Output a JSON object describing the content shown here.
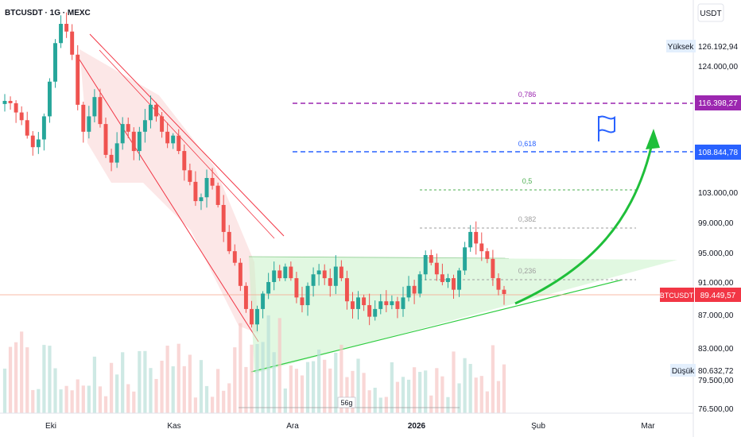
{
  "header": {
    "symbol_label": "BTCUSDT · 1G · MEXC"
  },
  "price_axis": {
    "currency": "USDT",
    "ticks": [
      "124.000,00",
      "103.000,00",
      "99.000,00",
      "95.000,00",
      "91.000,00",
      "87.000,00",
      "83.000,00",
      "79.500,00",
      "76.500,00"
    ],
    "high_label": "Yüksek",
    "high_value": "126.192,94",
    "low_label": "Düşük",
    "low_value": "80.632,72",
    "tag_786": "116.398,27",
    "tag_618": "108.844,78",
    "current_symbol": "BTCUSDT",
    "current_value": "89.449,57"
  },
  "time_axis": {
    "labels": [
      "Eki",
      "Kas",
      "Ara",
      "2026",
      "Şub",
      "Mar"
    ]
  },
  "fib": {
    "l786": "0,786",
    "l618": "0,618",
    "l5": "0,5",
    "l382": "0,382",
    "l236": "0,236"
  },
  "measure_label": "56g",
  "colors": {
    "up": "#26a69a",
    "down": "#ef5350",
    "fib786": "#9c27b0",
    "fib618": "#2962ff",
    "arrow": "#1fbf3a"
  },
  "icons": [
    "flag-icon"
  ],
  "chart_data": {
    "type": "candlestick",
    "title": "BTCUSDT · 1G · MEXC",
    "x_labels": [
      "Eki",
      "Kas",
      "Ara",
      "2026",
      "Şub",
      "Mar"
    ],
    "y_ticks": [
      124000,
      103000,
      99000,
      95000,
      91000,
      87000,
      83000,
      79500,
      76500
    ],
    "high": 126192.94,
    "low": 80632.72,
    "current": 89449.57,
    "fib_levels": [
      {
        "ratio": "0,786",
        "price": 116398.27
      },
      {
        "ratio": "0,618",
        "price": 108844.78
      },
      {
        "ratio": "0,5",
        "price": 103500
      },
      {
        "ratio": "0,382",
        "price": 98200
      },
      {
        "ratio": "0,236",
        "price": 91600
      }
    ],
    "close_path": [
      114500,
      114200,
      113000,
      112000,
      110000,
      108500,
      109500,
      112500,
      117000,
      122000,
      124500,
      123500,
      120500,
      114000,
      110500,
      112500,
      115000,
      111500,
      107500,
      106500,
      109000,
      111500,
      110500,
      108000,
      110500,
      112000,
      114000,
      112500,
      110500,
      109000,
      110000,
      108000,
      105500,
      104000,
      101500,
      102000,
      104500,
      103500,
      101000,
      97500,
      95000,
      93500,
      90500,
      87500,
      85500,
      87500,
      89500,
      91000,
      92500,
      91500,
      93000,
      91500,
      89000,
      88000,
      90500,
      92000,
      92500,
      91500,
      90500,
      93000,
      91500,
      88500,
      87500,
      89000,
      88000,
      86500,
      87500,
      88500,
      88000,
      88500,
      87500,
      89000,
      90500,
      89500,
      92000,
      94500,
      93500,
      92000,
      91000,
      91500,
      90000,
      92500,
      95500,
      97500,
      96000,
      95000,
      94000,
      91500,
      90000,
      89449.57
    ]
  }
}
